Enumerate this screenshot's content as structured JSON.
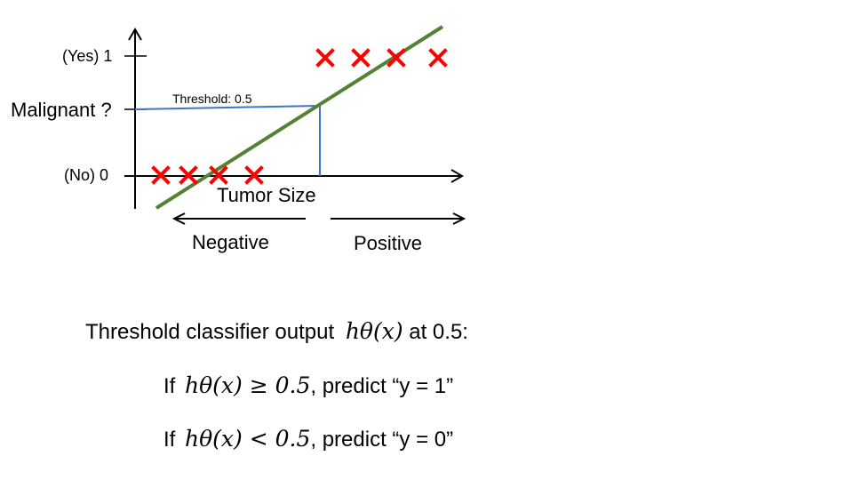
{
  "plot": {
    "y_tick_yes": "(Yes) 1",
    "y_tick_no": "(No) 0",
    "y_label": "Malignant ?",
    "x_label": "Tumor Size",
    "threshold_label": "Threshold: 0.5",
    "negative_label": "Negative",
    "positive_label": "Positive",
    "colors": {
      "axes": "#000000",
      "fit_line": "#548235",
      "threshold": "#4472c4",
      "marker": "#ff0000"
    },
    "marker_symbol": "x",
    "markers_at_0": 4,
    "markers_at_1": 4
  },
  "text": {
    "line1_prefix": "Threshold classifier output",
    "line1_math": "hθ(x)",
    "line1_suffix": "at 0.5:",
    "line2_if": "If",
    "line2_math": "hθ(x) ≥ 0.5",
    "line2_rest": ", predict “y = 1”",
    "line3_if": "If",
    "line3_math": "hθ(x) < 0.5",
    "line3_rest": ", predict “y = 0”"
  }
}
